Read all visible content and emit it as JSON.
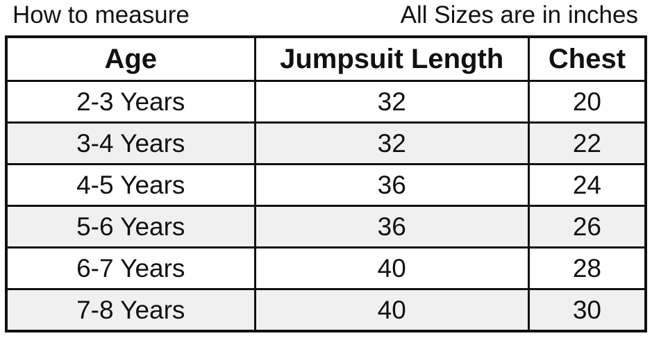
{
  "caption_left": "How to measure",
  "caption_right": "All Sizes are in inches",
  "table": {
    "headers": [
      "Age",
      "Jumpsuit Length",
      "Chest"
    ],
    "rows": [
      [
        "2-3 Years",
        "32",
        "20"
      ],
      [
        "3-4 Years",
        "32",
        "22"
      ],
      [
        "4-5 Years",
        "36",
        "24"
      ],
      [
        "5-6 Years",
        "36",
        "26"
      ],
      [
        "6-7 Years",
        "40",
        "28"
      ],
      [
        "7-8 Years",
        "40",
        "30"
      ]
    ]
  },
  "colors": {
    "border": "#111111",
    "alt_row": "#f0f0f0"
  }
}
